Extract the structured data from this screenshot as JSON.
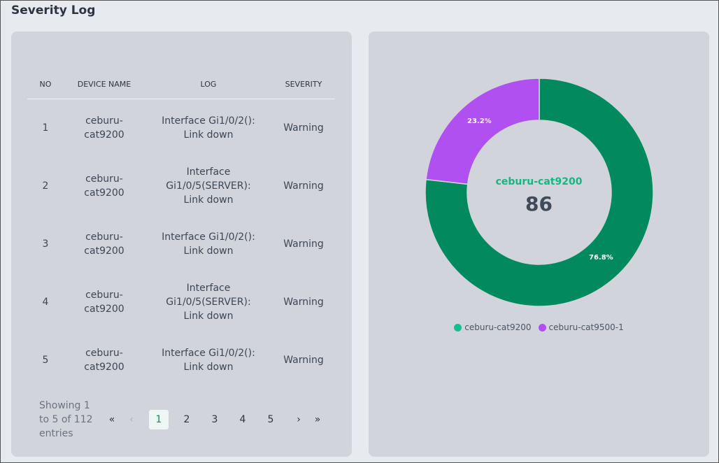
{
  "page": {
    "title": "Severity Log"
  },
  "table": {
    "headers": {
      "no": "NO",
      "device": "DEVICE NAME",
      "log": "LOG",
      "severity": "SEVERITY"
    },
    "rows": [
      {
        "no": "1",
        "device": "ceburu-cat9200",
        "log": "Interface Gi1/0/2(): Link down",
        "severity": "Warning"
      },
      {
        "no": "2",
        "device": "ceburu-cat9200",
        "log": "Interface Gi1/0/5(SERVER): Link down",
        "severity": "Warning"
      },
      {
        "no": "3",
        "device": "ceburu-cat9200",
        "log": "Interface Gi1/0/2(): Link down",
        "severity": "Warning"
      },
      {
        "no": "4",
        "device": "ceburu-cat9200",
        "log": "Interface Gi1/0/5(SERVER): Link down",
        "severity": "Warning"
      },
      {
        "no": "5",
        "device": "ceburu-cat9200",
        "log": "Interface Gi1/0/2(): Link down",
        "severity": "Warning"
      }
    ]
  },
  "pagination": {
    "info": "Showing 1 to 5 of 112 entries",
    "first": "«",
    "prev": "‹",
    "pages": [
      "1",
      "2",
      "3",
      "4",
      "5"
    ],
    "active_page": "1",
    "next": "›",
    "last": "»"
  },
  "chart_data": {
    "type": "pie",
    "donut": true,
    "categories": [
      "ceburu-cat9200",
      "ceburu-cat9500-1"
    ],
    "values": [
      76.8,
      23.2
    ],
    "value_labels": [
      "76.8%",
      "23.2%"
    ],
    "colors": [
      "#028a5e",
      "#b150f0"
    ],
    "legend_colors": [
      "#10c28a",
      "#b150f0"
    ],
    "center_label": "ceburu-cat9200",
    "center_value": "86",
    "legend_position": "bottom"
  }
}
